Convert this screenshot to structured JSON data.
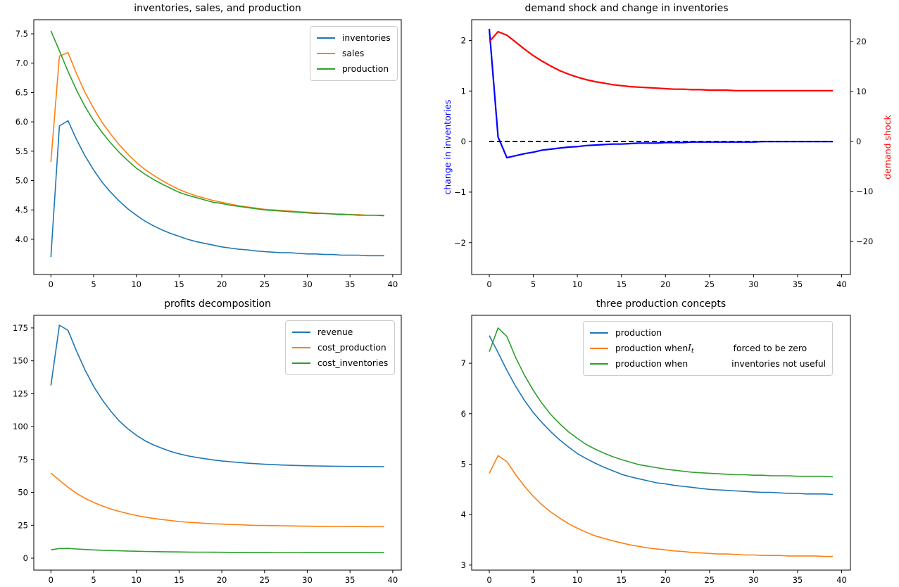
{
  "figure": {
    "background": "#ffffff",
    "accent_colors": {
      "c0": "#1f77b4",
      "c1": "#ff7f0e",
      "c2": "#2ca02c",
      "pure_blue": "#0000ff",
      "pure_red": "#ff0000",
      "black": "#000000"
    }
  },
  "chart_data": [
    {
      "id": "inventories-sales-production",
      "type": "line",
      "title": "inventories, sales, and production",
      "xlabel": "",
      "ylabel": "",
      "grid": false,
      "legend_position": "upper right",
      "xlim": [
        -2,
        41
      ],
      "ylim": [
        3.4,
        7.74
      ],
      "xticks": {
        "values": [
          0,
          5,
          10,
          15,
          20,
          25,
          30,
          35,
          40
        ],
        "labels": [
          "0",
          "5",
          "10",
          "15",
          "20",
          "25",
          "30",
          "35",
          "40"
        ]
      },
      "yticks": {
        "values": [
          4.0,
          4.5,
          5.0,
          5.5,
          6.0,
          6.5,
          7.0,
          7.5
        ],
        "labels": [
          "4.0",
          "4.5",
          "5.0",
          "5.5",
          "6.0",
          "6.5",
          "7.0",
          "7.5"
        ]
      },
      "x": [
        0,
        1,
        2,
        3,
        4,
        5,
        6,
        7,
        8,
        9,
        10,
        11,
        12,
        13,
        14,
        15,
        16,
        17,
        18,
        19,
        20,
        21,
        22,
        23,
        24,
        25,
        26,
        27,
        28,
        29,
        30,
        31,
        32,
        33,
        34,
        35,
        36,
        37,
        38,
        39
      ],
      "series": [
        {
          "name": "inventories",
          "color": "#1f77b4",
          "lw": 1.6,
          "values": [
            3.7,
            5.93,
            6.02,
            5.7,
            5.42,
            5.18,
            4.97,
            4.8,
            4.65,
            4.52,
            4.41,
            4.31,
            4.23,
            4.16,
            4.1,
            4.05,
            4.0,
            3.96,
            3.93,
            3.9,
            3.87,
            3.85,
            3.83,
            3.82,
            3.8,
            3.79,
            3.78,
            3.77,
            3.77,
            3.76,
            3.75,
            3.75,
            3.74,
            3.74,
            3.73,
            3.73,
            3.73,
            3.72,
            3.72,
            3.72
          ]
        },
        {
          "name": "sales",
          "color": "#ff7f0e",
          "lw": 1.6,
          "values": [
            5.32,
            7.12,
            7.18,
            6.82,
            6.5,
            6.23,
            5.99,
            5.79,
            5.61,
            5.45,
            5.31,
            5.19,
            5.09,
            5.0,
            4.92,
            4.85,
            4.79,
            4.74,
            4.7,
            4.66,
            4.63,
            4.6,
            4.57,
            4.55,
            4.53,
            4.51,
            4.5,
            4.49,
            4.48,
            4.47,
            4.46,
            4.45,
            4.44,
            4.43,
            4.43,
            4.42,
            4.42,
            4.41,
            4.41,
            4.41
          ]
        },
        {
          "name": "production",
          "color": "#2ca02c",
          "lw": 1.6,
          "values": [
            7.55,
            7.21,
            6.86,
            6.54,
            6.26,
            6.02,
            5.82,
            5.64,
            5.48,
            5.34,
            5.21,
            5.11,
            5.02,
            4.94,
            4.87,
            4.8,
            4.75,
            4.71,
            4.67,
            4.63,
            4.61,
            4.58,
            4.56,
            4.54,
            4.52,
            4.5,
            4.49,
            4.48,
            4.47,
            4.46,
            4.45,
            4.44,
            4.44,
            4.43,
            4.42,
            4.42,
            4.41,
            4.41,
            4.41,
            4.4
          ]
        }
      ],
      "legend": {
        "entries": [
          {
            "color": "#1f77b4",
            "parts": [
              {
                "text": "inventories"
              }
            ]
          },
          {
            "color": "#ff7f0e",
            "parts": [
              {
                "text": "sales"
              }
            ]
          },
          {
            "color": "#2ca02c",
            "parts": [
              {
                "text": "production"
              }
            ]
          }
        ]
      }
    },
    {
      "id": "demand-shock-and-change-in-inventories",
      "type": "line",
      "title": "demand shock and change in inventories",
      "ylabel_left": {
        "text": "change in inventories",
        "color": "#0000ff"
      },
      "ylabel_right": {
        "text": "demand shock",
        "color": "#ff0000"
      },
      "grid": false,
      "xlim": [
        -2,
        41
      ],
      "ylim": [
        -2.63,
        2.41
      ],
      "ylim_right": [
        -26.6,
        24.4
      ],
      "xticks": {
        "values": [
          0,
          5,
          10,
          15,
          20,
          25,
          30,
          35,
          40
        ],
        "labels": [
          "0",
          "5",
          "10",
          "15",
          "20",
          "25",
          "30",
          "35",
          "40"
        ]
      },
      "yticks": {
        "values": [
          -2,
          -1,
          0,
          1,
          2
        ],
        "labels": [
          "−2",
          "−1",
          "0",
          "1",
          "2"
        ]
      },
      "yticks_right": {
        "values": [
          -20,
          -10,
          0,
          10,
          20
        ],
        "labels": [
          "−20",
          "−10",
          "0",
          "10",
          "20"
        ]
      },
      "x": [
        0,
        1,
        2,
        3,
        4,
        5,
        6,
        7,
        8,
        9,
        10,
        11,
        12,
        13,
        14,
        15,
        16,
        17,
        18,
        19,
        20,
        21,
        22,
        23,
        24,
        25,
        26,
        27,
        28,
        29,
        30,
        31,
        32,
        33,
        34,
        35,
        36,
        37,
        38,
        39
      ],
      "series": [
        {
          "name": "change-in-inventories",
          "color": "#0000ff",
          "lw": 2.2,
          "axis": "left",
          "values": [
            2.23,
            0.09,
            -0.32,
            -0.28,
            -0.24,
            -0.21,
            -0.17,
            -0.15,
            -0.13,
            -0.11,
            -0.1,
            -0.08,
            -0.07,
            -0.06,
            -0.05,
            -0.05,
            -0.04,
            -0.03,
            -0.03,
            -0.03,
            -0.02,
            -0.02,
            -0.02,
            -0.01,
            -0.01,
            -0.01,
            -0.01,
            -0.01,
            -0.01,
            -0.01,
            -0.01,
            0,
            0,
            0,
            0,
            0,
            0,
            0,
            0,
            0
          ]
        },
        {
          "name": "demand-shock",
          "color": "#ff0000",
          "lw": 2.2,
          "axis": "right",
          "values": [
            20.0,
            22.0,
            21.3,
            19.9,
            18.5,
            17.2,
            16.1,
            15.1,
            14.2,
            13.5,
            12.9,
            12.4,
            12.0,
            11.7,
            11.4,
            11.2,
            11.0,
            10.9,
            10.8,
            10.7,
            10.6,
            10.5,
            10.5,
            10.4,
            10.4,
            10.3,
            10.3,
            10.3,
            10.2,
            10.2,
            10.2,
            10.2,
            10.2,
            10.2,
            10.2,
            10.2,
            10.2,
            10.2,
            10.2,
            10.2
          ]
        },
        {
          "name": "zero-line",
          "color": "#000000",
          "lw": 1.8,
          "axis": "left",
          "dash": [
            7,
            4
          ],
          "x": [
            0,
            39
          ],
          "values": [
            0,
            0
          ]
        }
      ]
    },
    {
      "id": "profits-decomposition",
      "type": "line",
      "title": "profits decomposition",
      "xlabel": "",
      "ylabel": "",
      "grid": false,
      "legend_position": "upper right",
      "xlim": [
        -2,
        41
      ],
      "ylim": [
        -9.1,
        184.6
      ],
      "xticks": {
        "values": [
          0,
          5,
          10,
          15,
          20,
          25,
          30,
          35,
          40
        ],
        "labels": [
          "0",
          "5",
          "10",
          "15",
          "20",
          "25",
          "30",
          "35",
          "40"
        ]
      },
      "yticks": {
        "values": [
          0,
          25,
          50,
          75,
          100,
          125,
          150,
          175
        ],
        "labels": [
          "0",
          "25",
          "50",
          "75",
          "100",
          "125",
          "150",
          "175"
        ]
      },
      "x": [
        0,
        1,
        2,
        3,
        4,
        5,
        6,
        7,
        8,
        9,
        10,
        11,
        12,
        13,
        14,
        15,
        16,
        17,
        18,
        19,
        20,
        21,
        22,
        23,
        24,
        25,
        26,
        27,
        28,
        29,
        30,
        31,
        32,
        33,
        34,
        35,
        36,
        37,
        38,
        39
      ],
      "series": [
        {
          "name": "revenue",
          "color": "#1f77b4",
          "lw": 1.6,
          "values": [
            131.3,
            177.1,
            173.2,
            157.4,
            143.0,
            130.6,
            120.5,
            111.8,
            104.3,
            98.4,
            93.4,
            89.3,
            86.1,
            83.5,
            81.1,
            79.3,
            77.8,
            76.6,
            75.6,
            74.7,
            73.9,
            73.3,
            72.7,
            72.2,
            71.8,
            71.4,
            71.1,
            70.8,
            70.6,
            70.4,
            70.2,
            70.1,
            70.0,
            69.9,
            69.8,
            69.7,
            69.7,
            69.6,
            69.6,
            69.5
          ]
        },
        {
          "name": "cost_production",
          "color": "#ff7f0e",
          "lw": 1.6,
          "values": [
            64.6,
            59.2,
            53.9,
            49.3,
            45.5,
            42.3,
            39.7,
            37.4,
            35.5,
            33.9,
            32.4,
            31.2,
            30.2,
            29.3,
            28.6,
            27.8,
            27.3,
            26.9,
            26.5,
            26.1,
            25.9,
            25.6,
            25.4,
            25.1,
            24.9,
            24.8,
            24.7,
            24.6,
            24.5,
            24.4,
            24.3,
            24.2,
            24.2,
            24.1,
            24.1,
            24.0,
            24.0,
            23.9,
            23.9,
            23.9
          ]
        },
        {
          "name": "cost_inventories",
          "color": "#2ca02c",
          "lw": 1.6,
          "values": [
            6.32,
            7.35,
            7.37,
            6.95,
            6.59,
            6.28,
            6.01,
            5.78,
            5.57,
            5.38,
            5.22,
            5.08,
            4.97,
            4.87,
            4.77,
            4.69,
            4.62,
            4.57,
            4.52,
            4.48,
            4.45,
            4.41,
            4.38,
            4.35,
            4.33,
            4.31,
            4.3,
            4.29,
            4.27,
            4.26,
            4.25,
            4.24,
            4.23,
            4.23,
            4.22,
            4.21,
            4.21,
            4.2,
            4.19,
            4.18
          ]
        }
      ],
      "legend": {
        "entries": [
          {
            "color": "#1f77b4",
            "parts": [
              {
                "text": "revenue"
              }
            ]
          },
          {
            "color": "#ff7f0e",
            "parts": [
              {
                "text": "cost_production"
              }
            ]
          },
          {
            "color": "#2ca02c",
            "parts": [
              {
                "text": "cost_inventories"
              }
            ]
          }
        ]
      }
    },
    {
      "id": "three-production-concepts",
      "type": "line",
      "title": "three production concepts",
      "xlabel": "",
      "ylabel": "",
      "grid": false,
      "legend_position": "upper center",
      "xlim": [
        -2,
        41
      ],
      "ylim": [
        2.9,
        7.95
      ],
      "xticks": {
        "values": [
          0,
          5,
          10,
          15,
          20,
          25,
          30,
          35,
          40
        ],
        "labels": [
          "0",
          "5",
          "10",
          "15",
          "20",
          "25",
          "30",
          "35",
          "40"
        ]
      },
      "yticks": {
        "values": [
          3,
          4,
          5,
          6,
          7
        ],
        "labels": [
          "3",
          "4",
          "5",
          "6",
          "7"
        ]
      },
      "x": [
        0,
        1,
        2,
        3,
        4,
        5,
        6,
        7,
        8,
        9,
        10,
        11,
        12,
        13,
        14,
        15,
        16,
        17,
        18,
        19,
        20,
        21,
        22,
        23,
        24,
        25,
        26,
        27,
        28,
        29,
        30,
        31,
        32,
        33,
        34,
        35,
        36,
        37,
        38,
        39
      ],
      "series": [
        {
          "name": "production",
          "color": "#1f77b4",
          "lw": 1.6,
          "values": [
            7.55,
            7.21,
            6.86,
            6.54,
            6.26,
            6.02,
            5.82,
            5.64,
            5.48,
            5.34,
            5.21,
            5.11,
            5.02,
            4.94,
            4.87,
            4.8,
            4.75,
            4.71,
            4.67,
            4.63,
            4.61,
            4.58,
            4.56,
            4.54,
            4.52,
            4.5,
            4.49,
            4.48,
            4.47,
            4.46,
            4.45,
            4.44,
            4.44,
            4.43,
            4.42,
            4.42,
            4.41,
            4.41,
            4.41,
            4.4
          ]
        },
        {
          "name": "production-when-It-forced-to-be-zero",
          "color": "#ff7f0e",
          "lw": 1.6,
          "values": [
            4.82,
            5.17,
            5.05,
            4.79,
            4.56,
            4.36,
            4.19,
            4.05,
            3.93,
            3.82,
            3.73,
            3.65,
            3.58,
            3.53,
            3.48,
            3.44,
            3.4,
            3.37,
            3.34,
            3.32,
            3.3,
            3.28,
            3.27,
            3.25,
            3.24,
            3.23,
            3.22,
            3.22,
            3.21,
            3.2,
            3.2,
            3.19,
            3.19,
            3.19,
            3.18,
            3.18,
            3.18,
            3.18,
            3.17,
            3.17
          ]
        },
        {
          "name": "production-when-inventories-not-useful",
          "color": "#2ca02c",
          "lw": 1.6,
          "values": [
            7.23,
            7.7,
            7.53,
            7.11,
            6.76,
            6.46,
            6.2,
            5.98,
            5.8,
            5.64,
            5.51,
            5.39,
            5.3,
            5.22,
            5.15,
            5.09,
            5.04,
            4.99,
            4.96,
            4.93,
            4.9,
            4.88,
            4.86,
            4.84,
            4.83,
            4.82,
            4.81,
            4.8,
            4.79,
            4.79,
            4.78,
            4.78,
            4.77,
            4.77,
            4.77,
            4.76,
            4.76,
            4.76,
            4.76,
            4.75
          ]
        }
      ],
      "legend": {
        "entries": [
          {
            "color": "#1f77b4",
            "parts": [
              {
                "text": "production"
              }
            ]
          },
          {
            "color": "#ff7f0e",
            "parts": [
              {
                "text": "production when "
              },
              {
                "math": {
                  "base": "I",
                  "sub": "t"
                }
              },
              {
                "gap": 56
              },
              {
                "text": "forced to be zero"
              }
            ]
          },
          {
            "color": "#2ca02c",
            "parts": [
              {
                "text": "production when"
              },
              {
                "gap": 62
              },
              {
                "text": "inventories not useful"
              }
            ]
          }
        ]
      }
    }
  ]
}
